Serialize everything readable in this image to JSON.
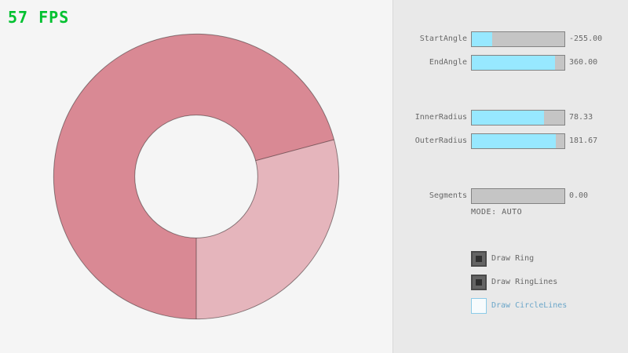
{
  "fps": {
    "text": "57 FPS",
    "color": "#00c12f"
  },
  "ring": {
    "start_angle": -255.0,
    "end_angle": 360.0,
    "inner_radius": 78.33,
    "outer_radius": 181.67,
    "color_dark": "#d98994",
    "color_light": "#e5b5bc",
    "line_color": "rgba(0,0,0,0.42)"
  },
  "panel": {
    "sliders": [
      {
        "label": "StartAngle",
        "value": "-255.00",
        "fraction": 0.217
      },
      {
        "label": "EndAngle",
        "value": "360.00",
        "fraction": 0.9
      },
      {
        "label": "InnerRadius",
        "value": "78.33",
        "fraction": 0.783
      },
      {
        "label": "OuterRadius",
        "value": "181.67",
        "fraction": 0.908
      },
      {
        "label": "Segments",
        "value": "0.00",
        "fraction": 0.0
      }
    ],
    "slider_fill_color": "#97e8ff",
    "mode_text": "MODE: AUTO",
    "checkboxes": [
      {
        "label": "Draw Ring",
        "checked": true
      },
      {
        "label": "Draw RingLines",
        "checked": true
      },
      {
        "label": "Draw CircleLines",
        "checked": false
      }
    ]
  }
}
